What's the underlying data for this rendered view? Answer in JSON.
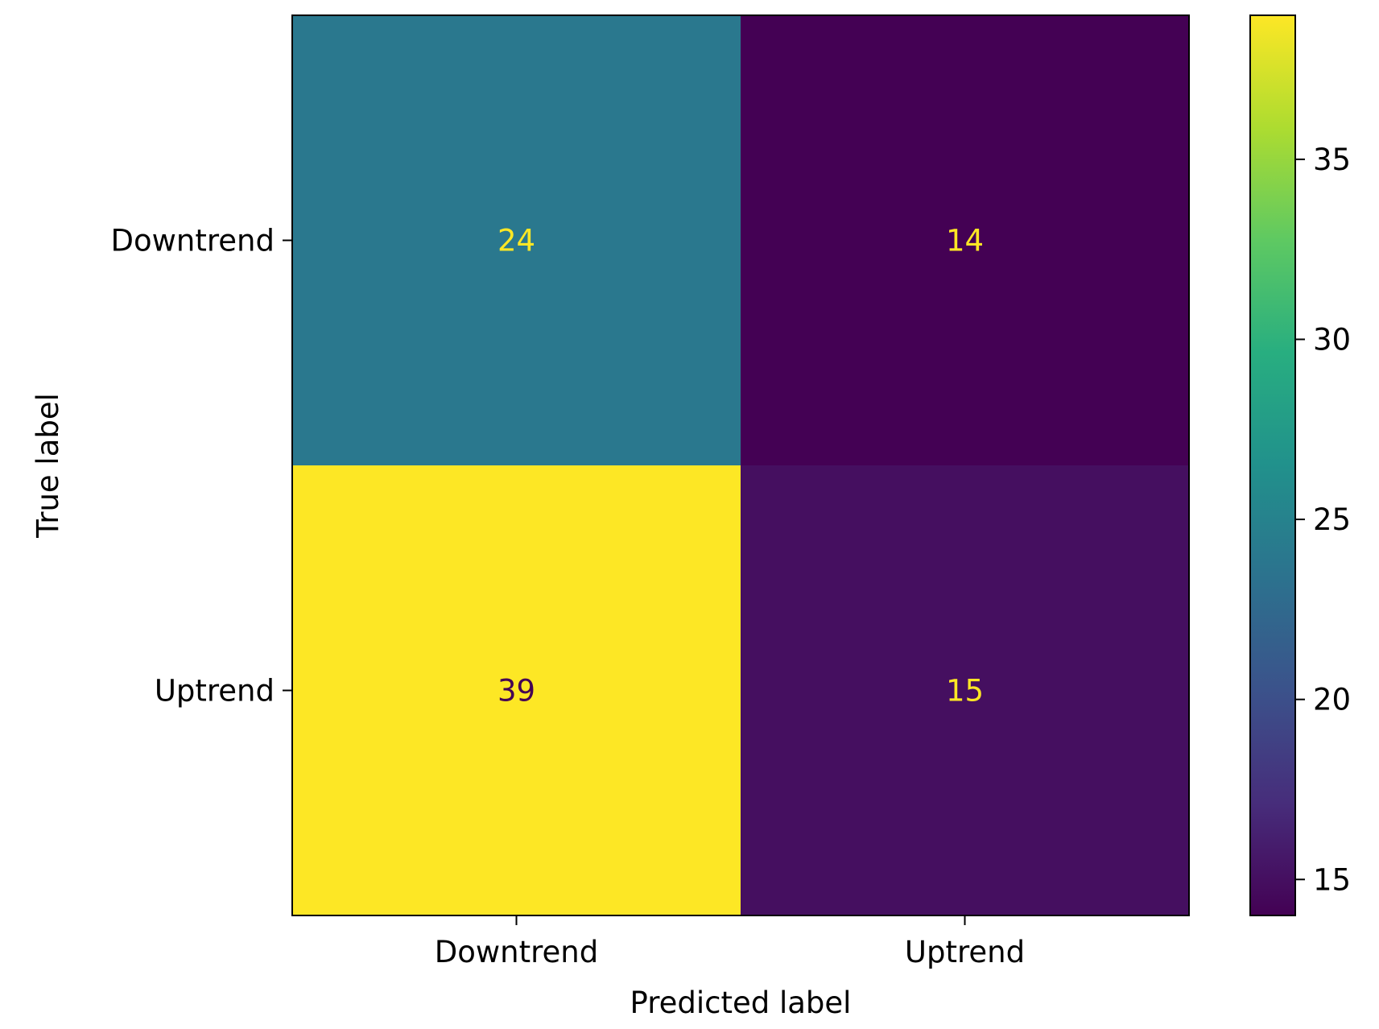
{
  "chart_data": {
    "type": "heatmap",
    "title": "",
    "xlabel": "Predicted label",
    "ylabel": "True label",
    "x_categories": [
      "Downtrend",
      "Uptrend"
    ],
    "y_categories": [
      "Downtrend",
      "Uptrend"
    ],
    "values": [
      [
        24,
        14
      ],
      [
        39,
        15
      ]
    ],
    "colormap": "viridis",
    "colorbar": {
      "min": 14,
      "max": 39,
      "ticks": [
        15,
        20,
        25,
        30,
        35
      ],
      "tick_labels": [
        "15",
        "20",
        "25",
        "30",
        "35"
      ]
    },
    "text_colors": {
      "light": "#fde725",
      "dark": "#440154"
    }
  }
}
